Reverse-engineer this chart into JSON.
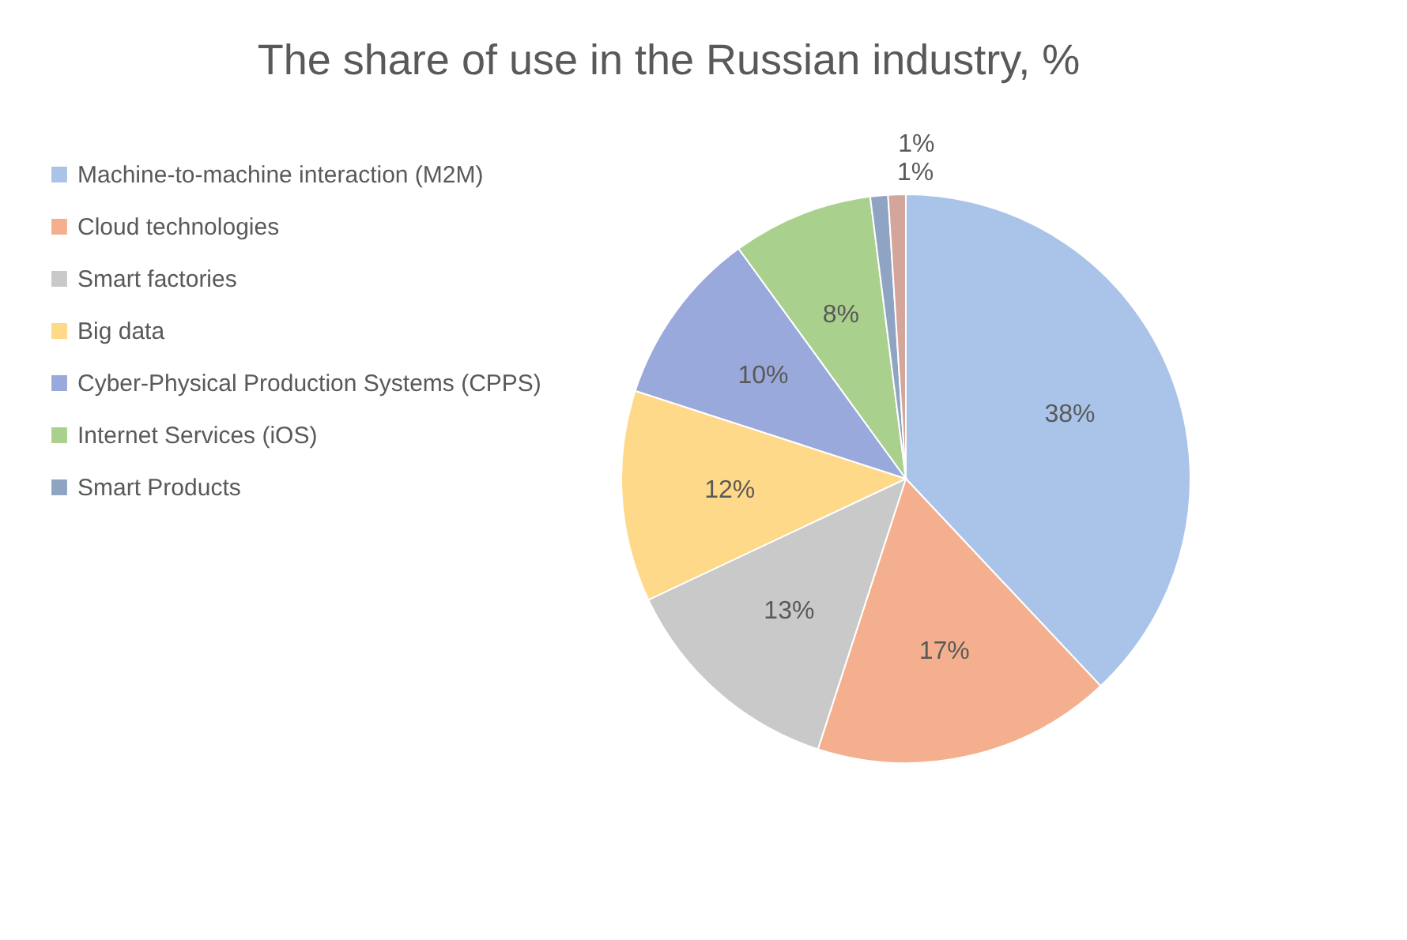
{
  "chart_data": {
    "type": "pie",
    "title": "The share of use in the Russian industry, %",
    "categories": [
      "Machine-to-machine interaction (M2M)",
      "Cloud technologies",
      "Smart factories",
      "Big data",
      "Cyber-Physical Production Systems (CPPS)",
      "Internet Services (iOS)",
      "Smart Products",
      null
    ],
    "values": [
      38,
      17,
      13,
      12,
      10,
      8,
      1,
      1
    ],
    "colors": [
      "#a9c4e8",
      "#f4b08e",
      "#c9c9c9",
      "#ffd98a",
      "#9aa9db",
      "#aad08e",
      "#8fa3c2",
      "#d4a59a"
    ],
    "value_labels": [
      "38%",
      "17%",
      "13%",
      "12%",
      "10%",
      "8%",
      "1%",
      "1%"
    ],
    "legend": "left"
  }
}
